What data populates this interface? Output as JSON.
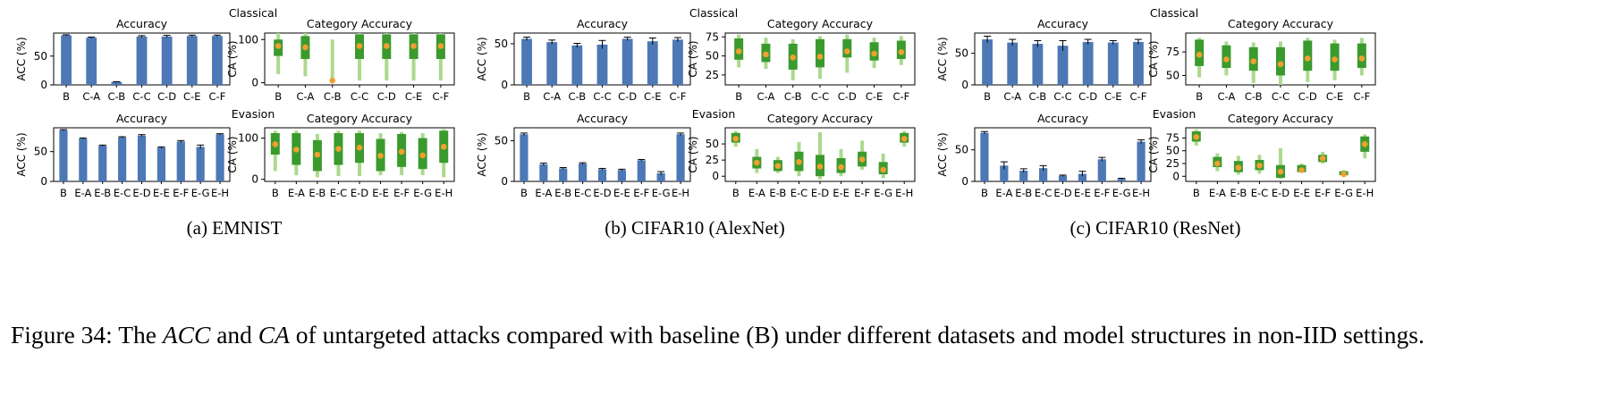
{
  "panels": [
    {
      "section_label_top": "Classical",
      "section_label_bottom": "Evasion",
      "sublabel": "(a)  EMNIST"
    },
    {
      "section_label_top": "Classical",
      "section_label_bottom": "Evasion",
      "sublabel": "(b)  CIFAR10 (AlexNet)"
    },
    {
      "section_label_top": "Classical",
      "section_label_bottom": "Evasion",
      "sublabel": "(c)  CIFAR10 (ResNet)"
    }
  ],
  "caption": {
    "prefix": "Figure 34: The ",
    "acc": "ACC",
    "mid": " and ",
    "ca": "CA",
    "suffix": " of untargeted attacks compared with baseline (B) under different datasets and model structures in non-IID settings."
  },
  "colors": {
    "bar": "#4c78b5",
    "ca_box": "#3a9a2e",
    "ca_whisker": "#acd98e",
    "ca_mean": "#f0a030",
    "axis": "#000000"
  },
  "chart_data": [
    {
      "type": "bar",
      "panel": "(a) EMNIST",
      "title": "Accuracy",
      "ylabel": "ACC (%)",
      "ylim": [
        0,
        90
      ],
      "yticks": [
        0,
        50
      ],
      "categories": [
        "B",
        "C-A",
        "C-B",
        "C-C",
        "C-D",
        "C-E",
        "C-F"
      ],
      "values": [
        86,
        82,
        5,
        84,
        84,
        85,
        85
      ],
      "errors": [
        1,
        1,
        0.5,
        1.5,
        2,
        1.5,
        1.5
      ]
    },
    {
      "type": "box",
      "panel": "(a) EMNIST",
      "title": "Category Accuracy",
      "ylabel": "CA (%)",
      "ylim": [
        -5,
        115
      ],
      "yticks": [
        0,
        100
      ],
      "categories": [
        "B",
        "C-A",
        "C-B",
        "C-C",
        "C-D",
        "C-E",
        "C-F"
      ],
      "whisker_low": [
        20,
        15,
        0,
        5,
        5,
        5,
        5
      ],
      "q1": [
        62,
        55,
        0,
        55,
        55,
        55,
        55
      ],
      "mean": [
        85,
        82,
        5,
        85,
        85,
        85,
        85
      ],
      "q3": [
        100,
        108,
        0,
        112,
        112,
        112,
        112
      ],
      "whisker_high": [
        115,
        115,
        100,
        116,
        116,
        116,
        116
      ]
    },
    {
      "type": "bar",
      "panel": "(a) EMNIST",
      "title": "Accuracy",
      "ylabel": "ACC (%)",
      "ylim": [
        0,
        90
      ],
      "yticks": [
        0,
        50
      ],
      "categories": [
        "B",
        "E-A",
        "E-B",
        "E-C",
        "E-D",
        "E-E",
        "E-F",
        "E-G",
        "E-H"
      ],
      "values": [
        86,
        72,
        60,
        74,
        77,
        57,
        67,
        58,
        79
      ],
      "errors": [
        1,
        1,
        1,
        1,
        1.5,
        1,
        1.5,
        3,
        1
      ]
    },
    {
      "type": "box",
      "panel": "(a) EMNIST",
      "title": "Category Accuracy",
      "ylabel": "CA (%)",
      "ylim": [
        -5,
        125
      ],
      "yticks": [
        0,
        100
      ],
      "categories": [
        "B",
        "E-A",
        "E-B",
        "E-C",
        "E-D",
        "E-E",
        "E-F",
        "E-G",
        "E-H"
      ],
      "whisker_low": [
        20,
        10,
        5,
        8,
        8,
        10,
        10,
        10,
        5
      ],
      "q1": [
        60,
        35,
        20,
        35,
        40,
        20,
        30,
        25,
        40
      ],
      "mean": [
        85,
        72,
        60,
        74,
        77,
        57,
        67,
        58,
        79
      ],
      "q3": [
        112,
        112,
        95,
        112,
        112,
        98,
        110,
        100,
        118
      ],
      "whisker_high": [
        118,
        118,
        110,
        118,
        118,
        112,
        115,
        112,
        122
      ]
    },
    {
      "type": "bar",
      "panel": "(b) CIFAR10 (AlexNet)",
      "title": "Accuracy",
      "ylabel": "ACC (%)",
      "ylim": [
        0,
        63
      ],
      "yticks": [
        0,
        50
      ],
      "categories": [
        "B",
        "C-A",
        "C-B",
        "C-C",
        "C-D",
        "C-E",
        "C-F"
      ],
      "values": [
        56,
        52,
        48,
        49,
        56,
        53,
        55
      ],
      "errors": [
        2,
        2.5,
        2.5,
        5,
        2,
        4,
        2.5
      ]
    },
    {
      "type": "box",
      "panel": "(b) CIFAR10 (AlexNet)",
      "title": "Category Accuracy",
      "ylabel": "CA (%)",
      "ylim": [
        12,
        80
      ],
      "yticks": [
        25,
        50,
        75
      ],
      "categories": [
        "B",
        "C-A",
        "C-B",
        "C-C",
        "C-D",
        "C-E",
        "C-F"
      ],
      "whisker_low": [
        35,
        33,
        18,
        20,
        28,
        34,
        38
      ],
      "q1": [
        45,
        42,
        32,
        35,
        48,
        44,
        46
      ],
      "mean": [
        56,
        52,
        48,
        49,
        56,
        53,
        55
      ],
      "q3": [
        73,
        66,
        66,
        72,
        72,
        68,
        70
      ],
      "whisker_high": [
        78,
        74,
        72,
        76,
        78,
        74,
        76
      ]
    },
    {
      "type": "bar",
      "panel": "(b) CIFAR10 (AlexNet)",
      "title": "Accuracy",
      "ylabel": "ACC (%)",
      "ylim": [
        0,
        66
      ],
      "yticks": [
        0,
        50
      ],
      "categories": [
        "B",
        "E-A",
        "E-B",
        "E-C",
        "E-D",
        "E-E",
        "E-F",
        "E-G",
        "E-H"
      ],
      "values": [
        58,
        21,
        16,
        22,
        15,
        14,
        26,
        10,
        58
      ],
      "errors": [
        1.5,
        1.5,
        1,
        1,
        1,
        1,
        1,
        2,
        1.5
      ]
    },
    {
      "type": "box",
      "panel": "(b) CIFAR10 (AlexNet)",
      "title": "Category Accuracy",
      "ylabel": "CA (%)",
      "ylim": [
        -8,
        75
      ],
      "yticks": [
        0,
        25,
        50
      ],
      "categories": [
        "B",
        "E-A",
        "E-B",
        "E-C",
        "E-D",
        "E-E",
        "E-F",
        "E-G",
        "E-H"
      ],
      "whisker_low": [
        46,
        5,
        5,
        0,
        -5,
        0,
        10,
        -3,
        46
      ],
      "q1": [
        52,
        12,
        8,
        8,
        0,
        5,
        15,
        3,
        52
      ],
      "mean": [
        58,
        21,
        16,
        22,
        15,
        14,
        26,
        10,
        58
      ],
      "q3": [
        67,
        30,
        25,
        38,
        33,
        28,
        38,
        22,
        67
      ],
      "whisker_high": [
        70,
        42,
        30,
        53,
        68,
        42,
        55,
        35,
        70
      ]
    },
    {
      "type": "bar",
      "panel": "(c) CIFAR10 (ResNet)",
      "title": "Accuracy",
      "ylabel": "ACC (%)",
      "ylim": [
        0,
        82
      ],
      "yticks": [
        0,
        50
      ],
      "categories": [
        "B",
        "C-A",
        "C-B",
        "C-C",
        "C-D",
        "C-E",
        "C-F"
      ],
      "values": [
        72,
        67,
        65,
        62,
        68,
        67,
        68
      ],
      "errors": [
        5,
        5,
        5,
        8,
        4,
        3,
        4
      ]
    },
    {
      "type": "box",
      "panel": "(c) CIFAR10 (ResNet)",
      "title": "Category Accuracy",
      "ylabel": "CA (%)",
      "ylim": [
        40,
        95
      ],
      "yticks": [
        50,
        75
      ],
      "categories": [
        "B",
        "C-A",
        "C-B",
        "C-C",
        "C-D",
        "C-E",
        "C-F"
      ],
      "whisker_low": [
        48,
        50,
        42,
        40,
        43,
        45,
        50
      ],
      "q1": [
        60,
        58,
        55,
        50,
        55,
        55,
        58
      ],
      "mean": [
        72,
        67,
        65,
        62,
        68,
        67,
        68
      ],
      "q3": [
        88,
        82,
        80,
        80,
        87,
        84,
        84
      ],
      "whisker_high": [
        90,
        86,
        85,
        86,
        90,
        88,
        90
      ]
    },
    {
      "type": "bar",
      "panel": "(c) CIFAR10 (ResNet)",
      "title": "Accuracy",
      "ylabel": "ACC (%)",
      "ylim": [
        0,
        85
      ],
      "yticks": [
        0,
        50
      ],
      "categories": [
        "B",
        "E-A",
        "E-B",
        "E-C",
        "E-D",
        "E-E",
        "E-F",
        "E-G",
        "E-H"
      ],
      "values": [
        77,
        25,
        17,
        21,
        9,
        12,
        35,
        4,
        63
      ],
      "errors": [
        2,
        6,
        3,
        4,
        1,
        4,
        3,
        1,
        3
      ]
    },
    {
      "type": "box",
      "panel": "(c) CIFAR10 (ResNet)",
      "title": "Category Accuracy",
      "ylabel": "CA (%)",
      "ylim": [
        -10,
        95
      ],
      "yticks": [
        0,
        25,
        50,
        75
      ],
      "categories": [
        "B",
        "E-A",
        "E-B",
        "E-C",
        "E-D",
        "E-E",
        "E-F",
        "E-G",
        "E-H"
      ],
      "whisker_low": [
        60,
        10,
        3,
        5,
        -5,
        8,
        25,
        2,
        35
      ],
      "q1": [
        68,
        18,
        8,
        12,
        -3,
        8,
        28,
        2,
        48
      ],
      "mean": [
        77,
        25,
        17,
        21,
        9,
        12,
        35,
        4,
        63
      ],
      "q3": [
        88,
        38,
        30,
        32,
        22,
        22,
        42,
        10,
        78
      ],
      "whisker_high": [
        92,
        45,
        40,
        42,
        55,
        25,
        48,
        12,
        82
      ]
    }
  ]
}
